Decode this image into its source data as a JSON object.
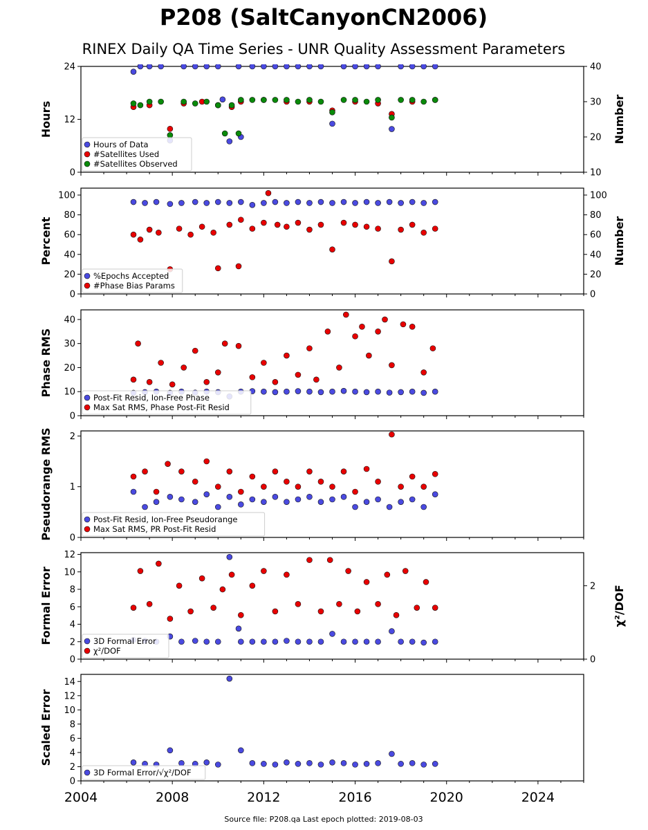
{
  "header": {
    "title": "P208 (SaltCanyonCN2006)",
    "subtitle": "RINEX Daily QA Time Series - UNR Quality Assessment Parameters"
  },
  "footer": {
    "text": "Source file: P208.qa Last epoch plotted: 2019-08-03"
  },
  "colors": {
    "blue": "#4a4ae0",
    "red": "#e80000",
    "green": "#0a8a0a"
  },
  "chart_data": [
    {
      "type": "scatter",
      "id": "hours",
      "ylabel": "Hours",
      "ylim": [
        0,
        24
      ],
      "yticks": [
        "0",
        "12",
        "24"
      ],
      "ylabel_right": "Number",
      "ylim_right": [
        10,
        40
      ],
      "yticks_right": [
        "10",
        "20",
        "30",
        "40"
      ],
      "legend": [
        "Hours of Data",
        "#Satellites Used",
        "#Satellites Observed"
      ],
      "legend_placement": "lower-left",
      "series": [
        {
          "name": "Hours of Data",
          "color": "blue",
          "axis": "left",
          "x": [
            2006.3,
            2006.6,
            2007.0,
            2007.5,
            2007.9,
            2008.5,
            2009.0,
            2009.5,
            2010.0,
            2010.2,
            2010.5,
            2010.9,
            2011.0,
            2011.5,
            2012.0,
            2012.5,
            2013.0,
            2013.5,
            2014.0,
            2014.5,
            2015.0,
            2015.5,
            2016.0,
            2016.5,
            2017.0,
            2017.6,
            2018.0,
            2018.5,
            2019.0,
            2019.5
          ],
          "y": [
            22.8,
            24,
            24,
            24,
            7.2,
            24,
            24,
            24,
            24,
            16.5,
            7,
            24,
            8,
            24,
            24,
            24,
            24,
            24,
            24,
            24,
            11,
            24,
            24,
            24,
            24,
            9.8,
            24,
            24,
            24,
            24
          ]
        },
        {
          "name": "#Satellites Used",
          "color": "red",
          "axis": "right",
          "x": [
            2006.3,
            2007.0,
            2007.9,
            2008.5,
            2009.3,
            2010.0,
            2010.6,
            2011.0,
            2012.0,
            2013.0,
            2014.0,
            2015.0,
            2016.0,
            2017.0,
            2017.6,
            2018.5,
            2019.5
          ],
          "y": [
            28.5,
            29,
            22.3,
            29.5,
            30,
            29,
            28.5,
            30,
            30.5,
            30,
            30,
            27.5,
            30,
            29.5,
            26.5,
            30,
            30.5
          ]
        },
        {
          "name": "#Satellites Observed",
          "color": "green",
          "axis": "right",
          "x": [
            2006.3,
            2006.6,
            2007.0,
            2007.5,
            2007.9,
            2008.5,
            2009.0,
            2009.5,
            2010.0,
            2010.3,
            2010.6,
            2010.9,
            2011.0,
            2011.5,
            2012.0,
            2012.5,
            2013.0,
            2013.5,
            2014.0,
            2014.5,
            2015.0,
            2015.5,
            2016.0,
            2016.5,
            2017.0,
            2017.6,
            2018.0,
            2018.5,
            2019.0,
            2019.5
          ],
          "y": [
            29.5,
            29,
            30,
            30,
            20.5,
            30,
            29.5,
            30,
            29,
            21,
            29,
            21,
            30.5,
            30.5,
            30.5,
            30.5,
            30.5,
            30,
            30.5,
            30,
            27,
            30.5,
            30.5,
            30,
            30.5,
            25.5,
            30.5,
            30.5,
            30,
            30.5
          ]
        }
      ]
    },
    {
      "type": "scatter",
      "id": "percent",
      "ylabel": "Percent",
      "ylim": [
        0,
        107
      ],
      "yticks": [
        "0",
        "20",
        "40",
        "60",
        "80",
        "100"
      ],
      "ylabel_right": "Number",
      "ylim_right": [
        0,
        107
      ],
      "yticks_right": [
        "0",
        "20",
        "40",
        "60",
        "80",
        "100"
      ],
      "legend": [
        "%Epochs Accepted",
        "#Phase Bias Params"
      ],
      "legend_placement": "lower-left",
      "series": [
        {
          "name": "%Epochs Accepted",
          "color": "blue",
          "x": [
            2006.3,
            2006.8,
            2007.3,
            2007.9,
            2008.4,
            2009.0,
            2009.5,
            2010.0,
            2010.5,
            2011.0,
            2011.5,
            2012.0,
            2012.5,
            2013.0,
            2013.5,
            2014.0,
            2014.5,
            2015.0,
            2015.5,
            2016.0,
            2016.5,
            2017.0,
            2017.5,
            2018.0,
            2018.5,
            2019.0,
            2019.5
          ],
          "y": [
            93,
            92,
            93,
            91,
            92,
            93,
            92,
            93,
            92,
            93,
            90,
            92,
            93,
            92,
            93,
            92,
            93,
            92,
            93,
            92,
            93,
            92,
            93,
            92,
            93,
            92,
            93
          ]
        },
        {
          "name": "#Phase Bias Params",
          "color": "red",
          "x": [
            2006.3,
            2006.6,
            2007.0,
            2007.4,
            2007.9,
            2008.3,
            2008.8,
            2009.3,
            2009.8,
            2010.0,
            2010.5,
            2010.9,
            2011.0,
            2011.5,
            2012.0,
            2012.2,
            2012.6,
            2013.0,
            2013.5,
            2014.0,
            2014.5,
            2015.0,
            2015.5,
            2016.0,
            2016.5,
            2017.0,
            2017.6,
            2018.0,
            2018.5,
            2019.0,
            2019.5
          ],
          "y": [
            60,
            55,
            65,
            62,
            25,
            66,
            60,
            68,
            62,
            26,
            70,
            28,
            75,
            66,
            72,
            102,
            70,
            68,
            72,
            65,
            70,
            45,
            72,
            70,
            68,
            66,
            33,
            65,
            70,
            62,
            66
          ]
        }
      ]
    },
    {
      "type": "scatter",
      "id": "phase-rms",
      "ylabel": "Phase RMS",
      "ylim": [
        0,
        44
      ],
      "yticks": [
        "0",
        "10",
        "20",
        "30",
        "40"
      ],
      "legend": [
        "Post-Fit Resid, Ion-Free Phase",
        "Max Sat RMS, Phase Post-Fit Resid"
      ],
      "legend_placement": "lower-left",
      "series": [
        {
          "name": "Post-Fit Resid, Ion-Free Phase",
          "color": "blue",
          "x": [
            2006.3,
            2006.8,
            2007.3,
            2007.9,
            2008.4,
            2009.0,
            2009.5,
            2010.0,
            2010.5,
            2011.0,
            2011.5,
            2012.0,
            2012.5,
            2013.0,
            2013.5,
            2014.0,
            2014.5,
            2015.0,
            2015.5,
            2016.0,
            2016.5,
            2017.0,
            2017.5,
            2018.0,
            2018.5,
            2019.0,
            2019.5
          ],
          "y": [
            9.5,
            9.8,
            10,
            9.5,
            10,
            9.6,
            10,
            9.8,
            8,
            10,
            10.2,
            10,
            9.8,
            10,
            10.2,
            10,
            9.8,
            10,
            10.3,
            10,
            9.8,
            10,
            9.6,
            9.8,
            10,
            9.5,
            10
          ]
        },
        {
          "name": "Max Sat RMS, Phase Post-Fit Resid",
          "color": "red",
          "x": [
            2006.3,
            2006.5,
            2007.0,
            2007.5,
            2008.0,
            2008.5,
            2009.0,
            2009.5,
            2010.0,
            2010.3,
            2010.9,
            2011.5,
            2012.0,
            2012.5,
            2013.0,
            2013.5,
            2014.0,
            2014.3,
            2014.8,
            2015.3,
            2015.6,
            2016.0,
            2016.3,
            2016.6,
            2017.0,
            2017.3,
            2017.6,
            2018.1,
            2018.5,
            2019.0,
            2019.4
          ],
          "y": [
            15,
            30,
            14,
            22,
            13,
            20,
            27,
            14,
            18,
            30,
            29,
            16,
            22,
            14,
            25,
            17,
            28,
            15,
            35,
            20,
            42,
            33,
            37,
            25,
            35,
            40,
            21,
            38,
            37,
            18,
            28
          ]
        }
      ]
    },
    {
      "type": "scatter",
      "id": "pseudorange-rms",
      "ylabel": "Pseudorange RMS",
      "ylim": [
        0,
        2.1
      ],
      "yticks": [
        "0",
        "1",
        "2"
      ],
      "legend": [
        "Post-Fit Resid, Ion-Free Pseudorange",
        "Max Sat RMS, PR Post-Fit Resid"
      ],
      "legend_placement": "lower-left",
      "series": [
        {
          "name": "Post-Fit Resid, Ion-Free Pseudorange",
          "color": "blue",
          "x": [
            2006.3,
            2006.8,
            2007.3,
            2007.9,
            2008.4,
            2009.0,
            2009.5,
            2010.0,
            2010.5,
            2011.0,
            2011.5,
            2012.0,
            2012.5,
            2013.0,
            2013.5,
            2014.0,
            2014.5,
            2015.0,
            2015.5,
            2016.0,
            2016.5,
            2017.0,
            2017.5,
            2018.0,
            2018.5,
            2019.0,
            2019.5
          ],
          "y": [
            0.9,
            0.6,
            0.7,
            0.8,
            0.75,
            0.7,
            0.85,
            0.6,
            0.8,
            0.65,
            0.75,
            0.7,
            0.8,
            0.7,
            0.75,
            0.8,
            0.7,
            0.75,
            0.8,
            0.6,
            0.7,
            0.75,
            0.6,
            0.7,
            0.75,
            0.6,
            0.85
          ]
        },
        {
          "name": "Max Sat RMS, PR Post-Fit Resid",
          "color": "red",
          "x": [
            2006.3,
            2006.8,
            2007.3,
            2007.8,
            2008.4,
            2009.0,
            2009.5,
            2010.0,
            2010.5,
            2011.0,
            2011.5,
            2012.0,
            2012.5,
            2013.0,
            2013.5,
            2014.0,
            2014.5,
            2015.0,
            2015.5,
            2016.0,
            2016.5,
            2017.0,
            2017.6,
            2018.0,
            2018.5,
            2019.0,
            2019.5
          ],
          "y": [
            1.2,
            1.3,
            0.9,
            1.45,
            1.3,
            1.1,
            1.5,
            1.0,
            1.3,
            0.9,
            1.2,
            1.0,
            1.3,
            1.1,
            1.0,
            1.3,
            1.1,
            1.0,
            1.3,
            0.9,
            1.35,
            1.1,
            2.03,
            1.0,
            1.2,
            1.0,
            1.25
          ]
        }
      ]
    },
    {
      "type": "scatter",
      "id": "formal-error",
      "ylabel": "Formal Error",
      "ylim": [
        0,
        12.2
      ],
      "yticks": [
        "0",
        "2",
        "4",
        "6",
        "8",
        "10",
        "12"
      ],
      "ylabel_right": "χ²/DOF",
      "ylim_right": [
        0,
        2.9
      ],
      "yticks_right": [
        "0",
        "2"
      ],
      "legend": [
        "3D Formal Error",
        "χ²/DOF"
      ],
      "legend_placement": "lower-left",
      "series": [
        {
          "name": "3D Formal Error",
          "color": "blue",
          "axis": "left",
          "x": [
            2006.3,
            2006.8,
            2007.3,
            2007.9,
            2008.4,
            2009.0,
            2009.5,
            2010.0,
            2010.5,
            2010.9,
            2011.0,
            2011.5,
            2012.0,
            2012.5,
            2013.0,
            2013.5,
            2014.0,
            2014.5,
            2015.0,
            2015.5,
            2016.0,
            2016.5,
            2017.0,
            2017.6,
            2018.0,
            2018.5,
            2019.0,
            2019.5
          ],
          "y": [
            2.2,
            2.1,
            2.0,
            2.6,
            2.0,
            2.1,
            2.0,
            2.0,
            11.7,
            3.5,
            2.0,
            2.0,
            2.0,
            2.0,
            2.1,
            2.0,
            2.0,
            2.0,
            2.9,
            2.0,
            2.0,
            2.0,
            2.0,
            3.2,
            2.0,
            2.0,
            1.9,
            2.0
          ]
        },
        {
          "name": "χ²/DOF",
          "color": "red",
          "axis": "right",
          "x": [
            2006.3,
            2006.6,
            2007.0,
            2007.4,
            2007.9,
            2008.3,
            2008.8,
            2009.3,
            2009.8,
            2010.2,
            2010.6,
            2011.0,
            2011.5,
            2012.0,
            2012.5,
            2013.0,
            2013.5,
            2014.0,
            2014.5,
            2014.9,
            2015.3,
            2015.7,
            2016.1,
            2016.5,
            2017.0,
            2017.4,
            2017.8,
            2018.2,
            2018.7,
            2019.1,
            2019.5
          ],
          "y": [
            1.4,
            2.4,
            1.5,
            2.6,
            1.1,
            2.0,
            1.3,
            2.2,
            1.4,
            1.9,
            2.3,
            1.2,
            2.0,
            2.4,
            1.3,
            2.3,
            1.5,
            2.7,
            1.3,
            2.7,
            1.5,
            2.4,
            1.3,
            2.1,
            1.5,
            2.3,
            1.2,
            2.4,
            1.4,
            2.1,
            1.4
          ]
        }
      ]
    },
    {
      "type": "scatter",
      "id": "scaled-error",
      "ylabel": "Scaled Error",
      "ylim": [
        0,
        15
      ],
      "yticks": [
        "0",
        "2",
        "4",
        "6",
        "8",
        "10",
        "12",
        "14"
      ],
      "legend": [
        "3D Formal Error/√χ²/DOF"
      ],
      "legend_placement": "lower-left",
      "series": [
        {
          "name": "3D Formal Error/√χ²/DOF",
          "color": "blue",
          "x": [
            2006.3,
            2006.8,
            2007.3,
            2007.9,
            2008.4,
            2009.0,
            2009.5,
            2010.0,
            2010.5,
            2011.0,
            2011.5,
            2012.0,
            2012.5,
            2013.0,
            2013.5,
            2014.0,
            2014.5,
            2015.0,
            2015.5,
            2016.0,
            2016.5,
            2017.0,
            2017.6,
            2018.0,
            2018.5,
            2019.0,
            2019.5
          ],
          "y": [
            2.6,
            2.4,
            2.3,
            4.3,
            2.5,
            2.4,
            2.6,
            2.3,
            14.4,
            4.3,
            2.5,
            2.4,
            2.3,
            2.6,
            2.4,
            2.5,
            2.3,
            2.6,
            2.5,
            2.3,
            2.4,
            2.5,
            3.8,
            2.4,
            2.5,
            2.3,
            2.4
          ]
        }
      ]
    }
  ],
  "x_axis": {
    "xlim": [
      2004,
      2026
    ],
    "ticks": [
      "2004",
      "2008",
      "2012",
      "2016",
      "2020",
      "2024"
    ]
  }
}
